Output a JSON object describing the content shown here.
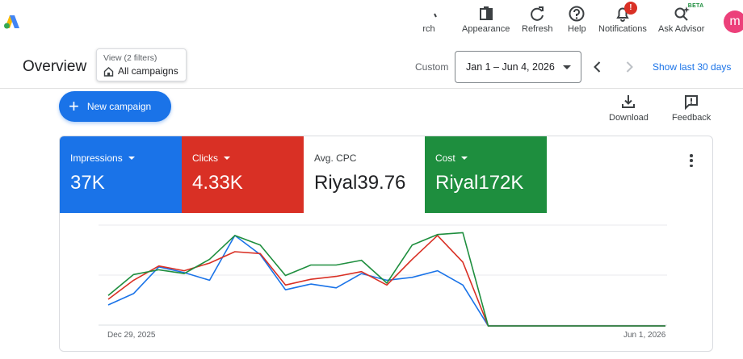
{
  "topbar": {
    "search_partial": "rch",
    "appearance": "Appearance",
    "refresh": "Refresh",
    "help": "Help",
    "notifications": "Notifications",
    "notifications_badge": "!",
    "ask_advisor": "Ask Advisor",
    "beta": "BETA",
    "avatar_initial": "m"
  },
  "header": {
    "title": "Overview",
    "view_filter_sub": "View (2 filters)",
    "view_filter_main": "All campaigns",
    "custom_label": "Custom",
    "date_range": "Jan 1 – Jun 4, 2026",
    "show_last": "Show last 30 days"
  },
  "actions": {
    "new_campaign": "New campaign",
    "download": "Download",
    "feedback": "Feedback"
  },
  "metrics": [
    {
      "name": "Impressions",
      "value": "37K",
      "color": "#1a73e8",
      "dropdown": true
    },
    {
      "name": "Clicks",
      "value": "4.33K",
      "color": "#d93025",
      "dropdown": true
    },
    {
      "name": "Avg. CPC",
      "value": "Riyal39.76",
      "color": "#ffffff",
      "dropdown": false
    },
    {
      "name": "Cost",
      "value": "Riyal172K",
      "color": "#1e8e3e",
      "dropdown": true
    }
  ],
  "chart_data": {
    "type": "line",
    "x_start_label": "Dec 29, 2025",
    "x_end_label": "Jun 1, 2026",
    "n_points": 23,
    "y_max": 100,
    "series": [
      {
        "color": "#1a73e8",
        "values": [
          22,
          34,
          62,
          56,
          48,
          95,
          75,
          38,
          44,
          40,
          55,
          48,
          51,
          58,
          43,
          0,
          0,
          0,
          0,
          0,
          0,
          0,
          0
        ]
      },
      {
        "color": "#d93025",
        "values": [
          28,
          48,
          63,
          58,
          66,
          78,
          76,
          43,
          49,
          52,
          57,
          43,
          70,
          95,
          67,
          0,
          0,
          0,
          0,
          0,
          0,
          0,
          0
        ]
      },
      {
        "color": "#1e8e3e",
        "values": [
          32,
          54,
          59,
          55,
          70,
          95,
          85,
          53,
          64,
          64,
          69,
          45,
          85,
          96,
          98,
          0,
          0,
          0,
          0,
          0,
          0,
          0,
          0
        ]
      }
    ]
  }
}
